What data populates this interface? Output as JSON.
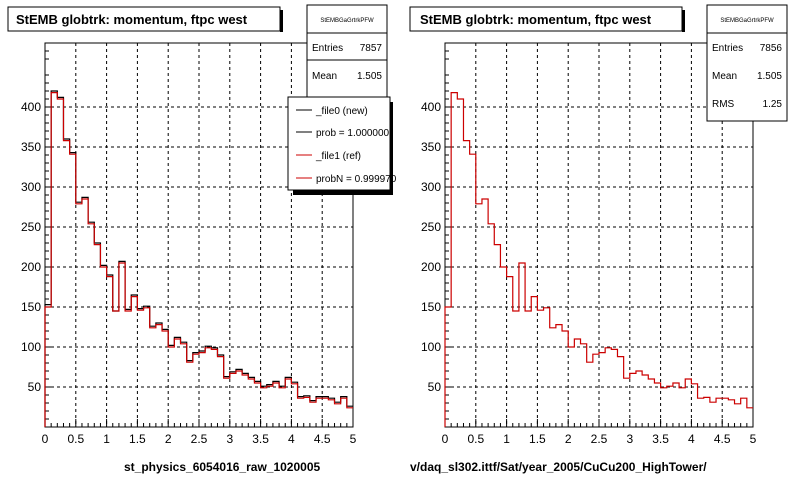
{
  "chart_data": [
    {
      "type": "histogram",
      "title": "StEMB globtrk: momentum, ftpc west",
      "xlabel": "st_physics_6054016_raw_1020005",
      "ylabel": "",
      "xlim": [
        0,
        5
      ],
      "ylim": [
        0,
        480
      ],
      "grid": true,
      "x_ticks": [
        0,
        0.5,
        1,
        1.5,
        2,
        2.5,
        3,
        3.5,
        4,
        4.5,
        5
      ],
      "x_tick_labels": [
        "0",
        "0.5",
        "1",
        "1.5",
        "2",
        "2.5",
        "3",
        "3.5",
        "4",
        "4.5",
        "5"
      ],
      "y_ticks": [
        50,
        100,
        150,
        200,
        250,
        300,
        350,
        400
      ],
      "y_tick_labels": [
        "50",
        "100",
        "150",
        "200",
        "250",
        "300",
        "350",
        "400"
      ],
      "bin_edges": [
        0,
        0.1,
        0.2,
        0.3,
        0.4,
        0.5,
        0.6,
        0.7,
        0.8,
        0.9,
        1.0,
        1.1,
        1.2,
        1.3,
        1.4,
        1.5,
        1.6,
        1.7,
        1.8,
        1.9,
        2.0,
        2.1,
        2.2,
        2.3,
        2.4,
        2.5,
        2.6,
        2.7,
        2.8,
        2.9,
        3.0,
        3.1,
        3.2,
        3.3,
        3.4,
        3.5,
        3.6,
        3.7,
        3.8,
        3.9,
        4.0,
        4.1,
        4.2,
        4.3,
        4.4,
        4.5,
        4.6,
        4.7,
        4.8,
        4.9,
        5.0
      ],
      "series": [
        {
          "name": "_file0 (new)",
          "color": "#000000",
          "values": [
            153,
            420,
            412,
            360,
            343,
            281,
            287,
            256,
            230,
            202,
            190,
            145,
            207,
            147,
            165,
            148,
            151,
            126,
            130,
            122,
            102,
            112,
            106,
            83,
            93,
            95,
            101,
            99,
            90,
            63,
            69,
            72,
            67,
            62,
            57,
            51,
            53,
            57,
            51,
            62,
            56,
            38,
            39,
            33,
            38,
            38,
            36,
            31,
            38,
            26
          ]
        },
        {
          "name": "_file1 (ref)",
          "color": "#cc0000",
          "values": [
            150,
            418,
            410,
            358,
            341,
            279,
            285,
            254,
            228,
            200,
            188,
            145,
            205,
            145,
            163,
            146,
            149,
            124,
            128,
            120,
            100,
            110,
            104,
            81,
            91,
            93,
            99,
            97,
            88,
            61,
            67,
            70,
            65,
            60,
            55,
            49,
            51,
            55,
            49,
            60,
            54,
            36,
            37,
            31,
            36,
            36,
            34,
            29,
            36,
            24
          ]
        }
      ],
      "stats": {
        "box_title": "StEMBGaGrtrkPFW",
        "entries_label": "Entries",
        "entries": "7857",
        "mean_label": "Mean",
        "mean": "1.505"
      },
      "legend": {
        "placement": "top-right",
        "entries": [
          {
            "label": "_file0 (new)",
            "color": "#000000"
          },
          {
            "label": "prob = 1.000000",
            "color": "#000000"
          },
          {
            "label": "_file1 (ref)",
            "color": "#cc0000"
          },
          {
            "label": "probN = 0.999970",
            "color": "#cc0000"
          }
        ]
      }
    },
    {
      "type": "histogram",
      "title": "StEMB globtrk: momentum, ftpc west",
      "xlabel": "v/daq_sl302.ittf/Sat/year_2005/CuCu200_HighTower/",
      "ylabel": "",
      "xlim": [
        0,
        5
      ],
      "ylim": [
        0,
        480
      ],
      "grid": true,
      "x_ticks": [
        0,
        0.5,
        1,
        1.5,
        2,
        2.5,
        3,
        3.5,
        4,
        4.5,
        5
      ],
      "x_tick_labels": [
        "0",
        "0.5",
        "1",
        "1.5",
        "2",
        "2.5",
        "3",
        "3.5",
        "4",
        "4.5",
        "5"
      ],
      "y_ticks": [
        50,
        100,
        150,
        200,
        250,
        300,
        350,
        400
      ],
      "y_tick_labels": [
        "50",
        "100",
        "150",
        "200",
        "250",
        "300",
        "350",
        "400"
      ],
      "bin_edges": [
        0,
        0.1,
        0.2,
        0.3,
        0.4,
        0.5,
        0.6,
        0.7,
        0.8,
        0.9,
        1.0,
        1.1,
        1.2,
        1.3,
        1.4,
        1.5,
        1.6,
        1.7,
        1.8,
        1.9,
        2.0,
        2.1,
        2.2,
        2.3,
        2.4,
        2.5,
        2.6,
        2.7,
        2.8,
        2.9,
        3.0,
        3.1,
        3.2,
        3.3,
        3.4,
        3.5,
        3.6,
        3.7,
        3.8,
        3.9,
        4.0,
        4.1,
        4.2,
        4.3,
        4.4,
        4.5,
        4.6,
        4.7,
        4.8,
        4.9,
        5.0
      ],
      "series": [
        {
          "name": "",
          "color": "#cc0000",
          "values": [
            150,
            418,
            410,
            358,
            341,
            279,
            285,
            254,
            228,
            200,
            188,
            145,
            205,
            145,
            163,
            146,
            149,
            124,
            128,
            120,
            100,
            110,
            104,
            81,
            91,
            93,
            99,
            97,
            88,
            61,
            67,
            70,
            65,
            60,
            55,
            49,
            51,
            55,
            49,
            60,
            54,
            36,
            37,
            31,
            36,
            36,
            34,
            29,
            36,
            24
          ]
        }
      ],
      "stats": {
        "box_title": "StEMBGaGrtrkPFW",
        "entries_label": "Entries",
        "entries": "7856",
        "mean_label": "Mean",
        "mean": "1.505",
        "rms_label": "RMS",
        "rms": "1.25"
      }
    }
  ]
}
